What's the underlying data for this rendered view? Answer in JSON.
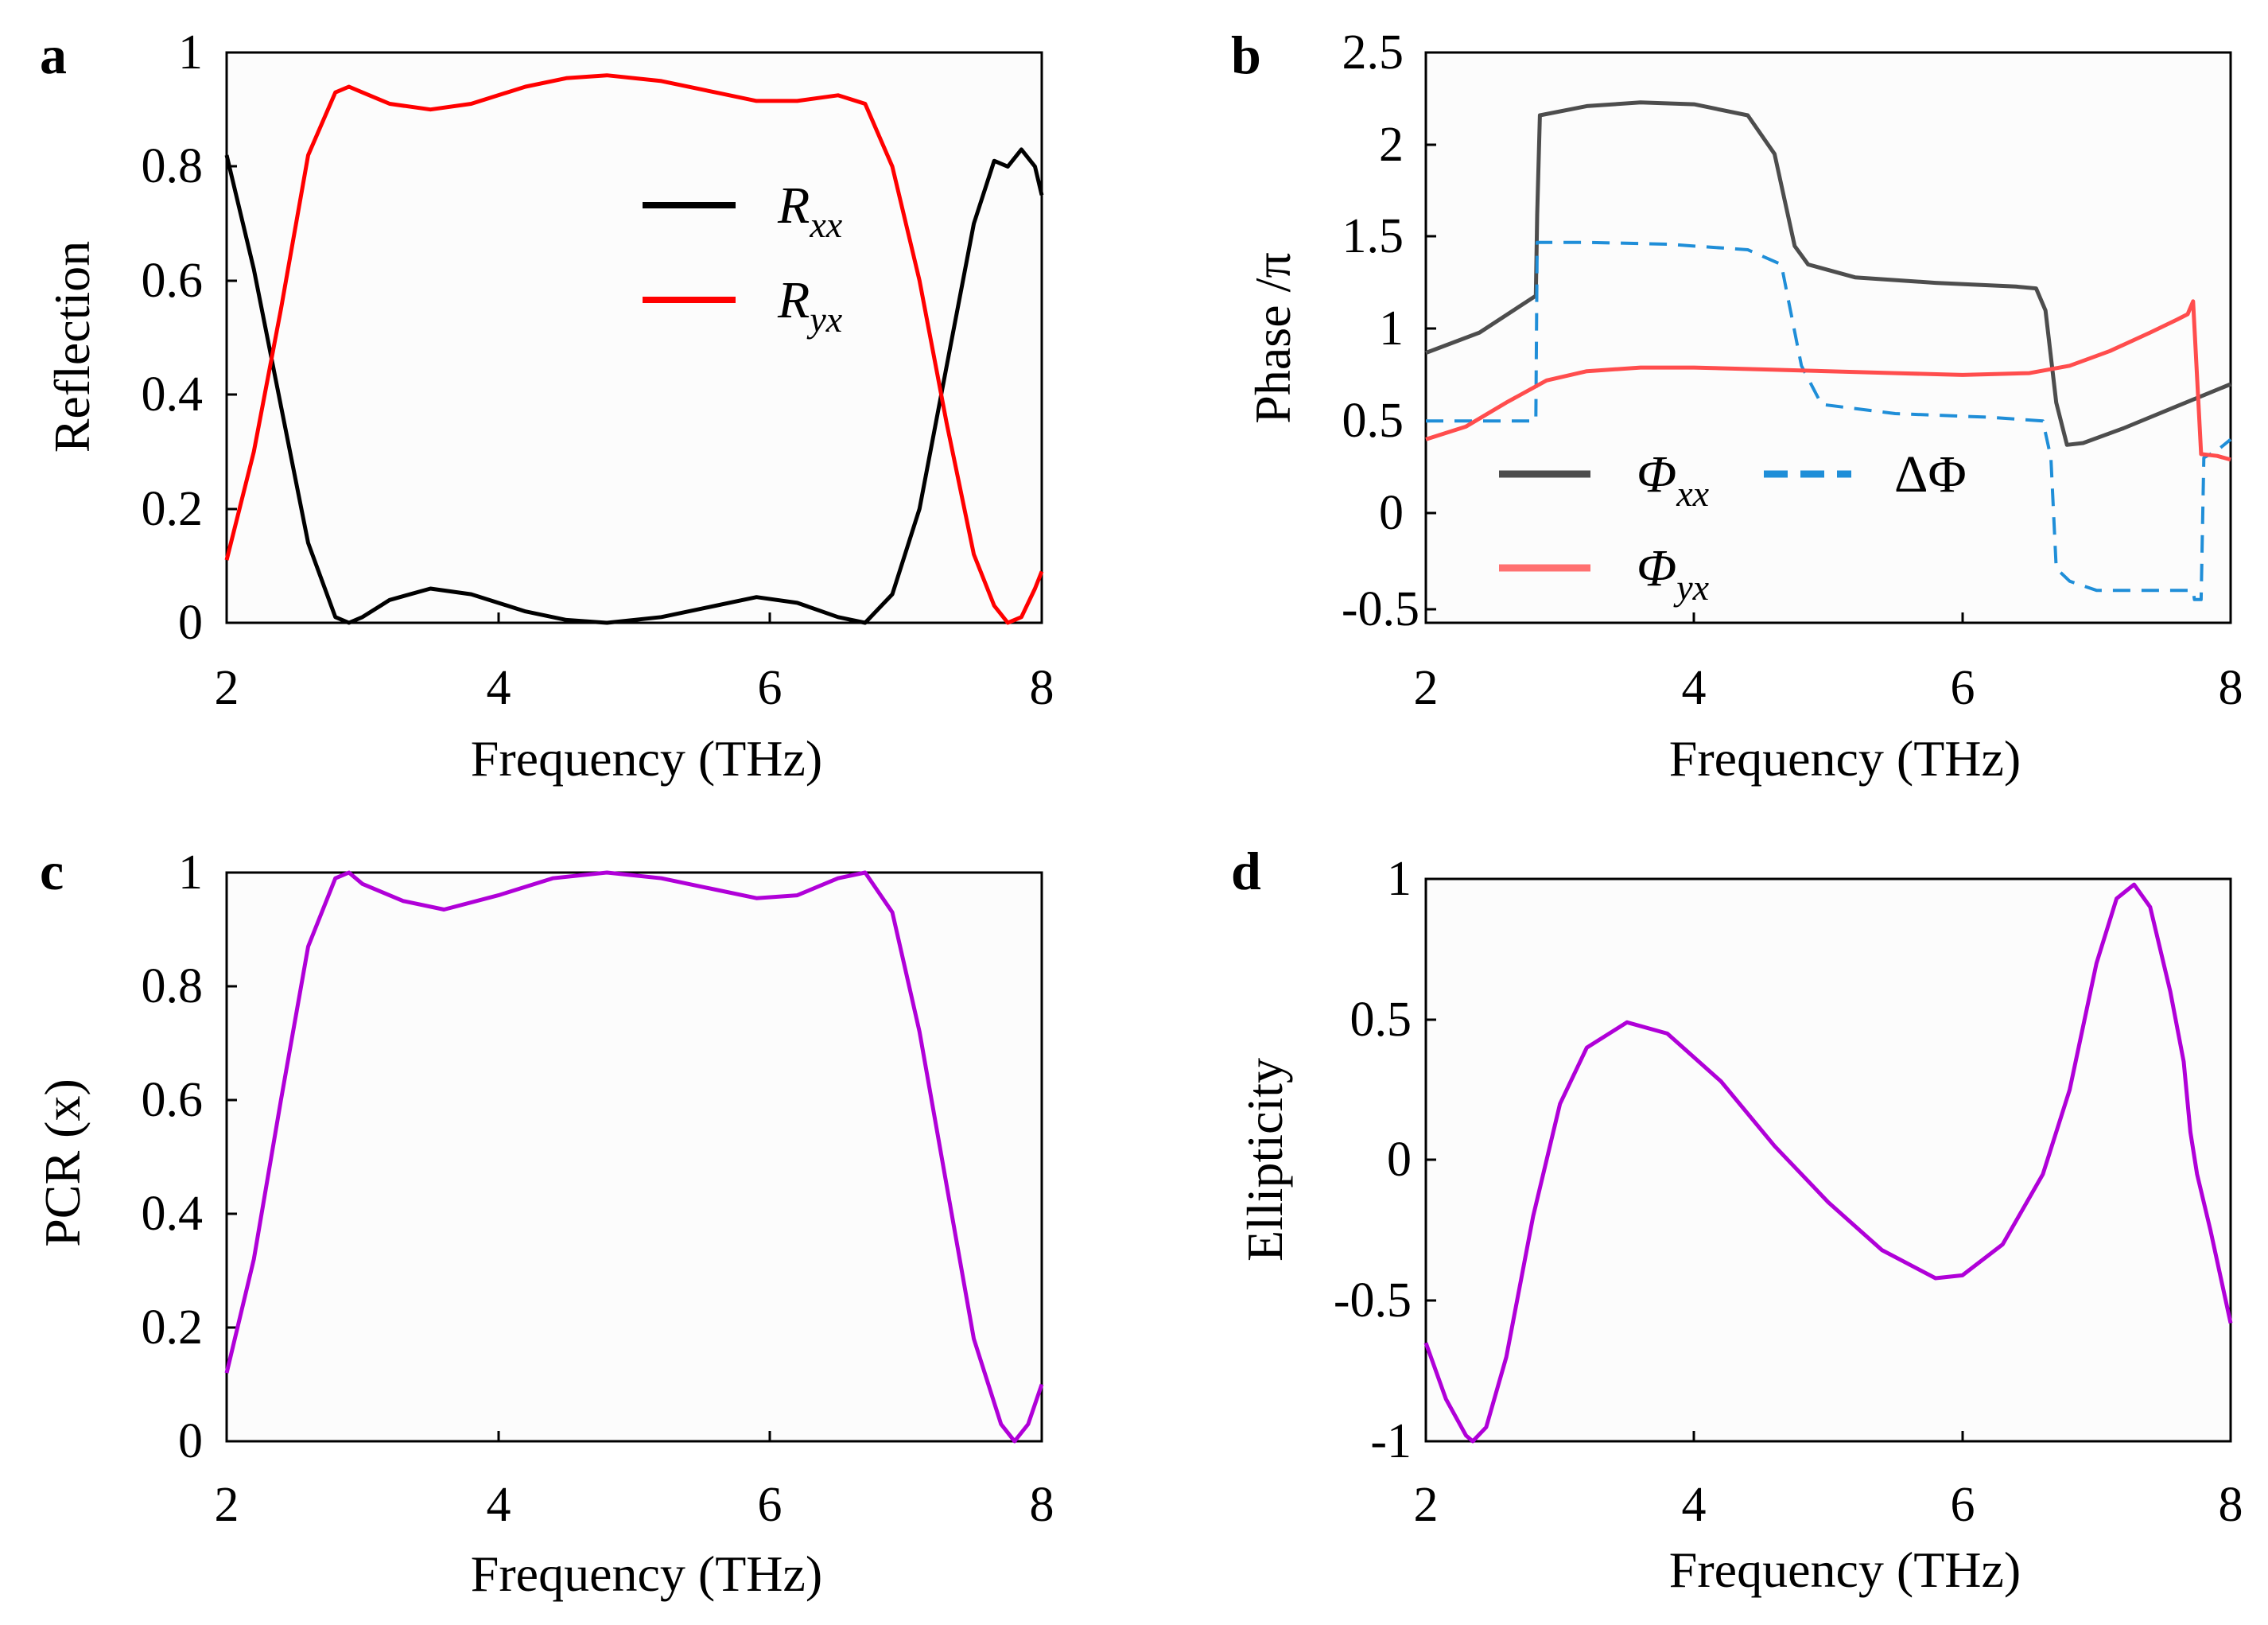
{
  "panels": [
    {
      "letter": "a",
      "xlabel": "Frequency (THz)",
      "ylabel": "Reflection",
      "xticks": [
        "2",
        "4",
        "6",
        "8"
      ],
      "yticks": [
        "0",
        "0.2",
        "0.4",
        "0.6",
        "0.8",
        "1"
      ]
    },
    {
      "letter": "b",
      "xlabel": "Frequency (THz)",
      "ylabel": "Phase /π",
      "xticks": [
        "2",
        "4",
        "6",
        "8"
      ],
      "yticks": [
        "-0.5",
        "0",
        "0.5",
        "1",
        "1.5",
        "2",
        "2.5"
      ]
    },
    {
      "letter": "c",
      "xlabel": "Frequency (THz)",
      "ylabel": "PCR (x)",
      "xticks": [
        "2",
        "4",
        "6",
        "8"
      ],
      "yticks": [
        "0",
        "0.2",
        "0.4",
        "0.6",
        "0.8",
        "1"
      ]
    },
    {
      "letter": "d",
      "xlabel": "Frequency (THz)",
      "ylabel": "Ellipticity",
      "xticks": [
        "2",
        "4",
        "6",
        "8"
      ],
      "yticks": [
        "-1",
        "-0.5",
        "0",
        "0.5",
        "1"
      ]
    }
  ],
  "chart_data": [
    {
      "type": "line",
      "title": "a",
      "xlabel": "Frequency (THz)",
      "ylabel": "Reflection",
      "xlim": [
        2,
        8
      ],
      "ylim": [
        0,
        1
      ],
      "legend_position": "top-right",
      "series": [
        {
          "name": "R_xx",
          "main": "R",
          "sub": "xx",
          "color": "#000000",
          "x": [
            2.0,
            2.2,
            2.4,
            2.6,
            2.8,
            2.9,
            3.0,
            3.2,
            3.5,
            3.8,
            4.2,
            4.5,
            4.8,
            5.2,
            5.6,
            5.9,
            6.2,
            6.5,
            6.7,
            6.9,
            7.1,
            7.3,
            7.5,
            7.65,
            7.75,
            7.85,
            7.95,
            8.0
          ],
          "y": [
            0.82,
            0.62,
            0.38,
            0.14,
            0.01,
            0.0,
            0.01,
            0.04,
            0.06,
            0.05,
            0.02,
            0.005,
            0.0,
            0.01,
            0.03,
            0.045,
            0.035,
            0.01,
            0.0,
            0.05,
            0.2,
            0.45,
            0.7,
            0.81,
            0.8,
            0.83,
            0.8,
            0.75
          ]
        },
        {
          "name": "R_yx",
          "main": "R",
          "sub": "yx",
          "color": "#ff0000",
          "x": [
            2.0,
            2.2,
            2.4,
            2.6,
            2.8,
            2.9,
            3.0,
            3.2,
            3.5,
            3.8,
            4.2,
            4.5,
            4.8,
            5.2,
            5.6,
            5.9,
            6.2,
            6.5,
            6.7,
            6.9,
            7.1,
            7.3,
            7.5,
            7.65,
            7.75,
            7.85,
            7.95,
            8.0
          ],
          "y": [
            0.11,
            0.3,
            0.55,
            0.82,
            0.93,
            0.94,
            0.93,
            0.91,
            0.9,
            0.91,
            0.94,
            0.955,
            0.96,
            0.95,
            0.93,
            0.915,
            0.915,
            0.925,
            0.91,
            0.8,
            0.6,
            0.35,
            0.12,
            0.03,
            0.0,
            0.01,
            0.06,
            0.09
          ]
        }
      ]
    },
    {
      "type": "line",
      "title": "b",
      "xlabel": "Frequency (THz)",
      "ylabel": "Phase /π",
      "xlim": [
        2,
        8
      ],
      "ylim": [
        -0.5,
        2.5
      ],
      "legend_position": "bottom-left",
      "series": [
        {
          "name": "Φ_xx",
          "main": "Φ",
          "sub": "xx",
          "color": "#4d4d4d",
          "dash": "",
          "x": [
            2.0,
            2.4,
            2.82,
            2.83,
            2.85,
            3.2,
            3.6,
            4.0,
            4.4,
            4.6,
            4.75,
            4.85,
            5.2,
            5.8,
            6.4,
            6.55,
            6.62,
            6.7,
            6.78,
            6.9,
            7.2,
            7.6,
            8.0
          ],
          "y": [
            0.87,
            0.98,
            1.18,
            1.62,
            2.16,
            2.21,
            2.23,
            2.22,
            2.16,
            1.95,
            1.45,
            1.35,
            1.28,
            1.25,
            1.23,
            1.22,
            1.1,
            0.6,
            0.37,
            0.38,
            0.46,
            0.58,
            0.7
          ]
        },
        {
          "name": "ΔΦ",
          "main": "ΔΦ",
          "sub": "",
          "color": "#1f8ed8",
          "dash": "22,14",
          "x": [
            2.0,
            2.82,
            2.83,
            3.2,
            3.8,
            4.4,
            4.65,
            4.8,
            4.95,
            5.5,
            6.2,
            6.6,
            6.66,
            6.7,
            6.8,
            7.0,
            7.5,
            7.72,
            7.73,
            7.78,
            7.8,
            7.9,
            8.0
          ],
          "y": [
            0.5,
            0.5,
            1.47,
            1.47,
            1.46,
            1.43,
            1.35,
            0.8,
            0.59,
            0.54,
            0.52,
            0.5,
            0.3,
            -0.3,
            -0.37,
            -0.42,
            -0.42,
            -0.42,
            -0.47,
            -0.47,
            0.3,
            0.34,
            0.4
          ]
        },
        {
          "name": "Φ_yx",
          "main": "Φ",
          "sub": "yx",
          "color": "#ff4d4d",
          "dash": "",
          "x": [
            2.0,
            2.3,
            2.6,
            2.9,
            3.2,
            3.6,
            4.0,
            4.5,
            5.0,
            5.5,
            6.0,
            6.5,
            6.8,
            7.1,
            7.4,
            7.6,
            7.68,
            7.72,
            7.78,
            7.9,
            8.0
          ],
          "y": [
            0.4,
            0.47,
            0.6,
            0.72,
            0.77,
            0.79,
            0.79,
            0.78,
            0.77,
            0.76,
            0.75,
            0.76,
            0.8,
            0.88,
            0.98,
            1.05,
            1.08,
            1.15,
            0.32,
            0.31,
            0.29
          ]
        }
      ]
    },
    {
      "type": "line",
      "title": "c",
      "xlabel": "Frequency (THz)",
      "ylabel": "PCR (x)",
      "xlim": [
        2,
        8
      ],
      "ylim": [
        0,
        1
      ],
      "series": [
        {
          "name": "PCR (x)",
          "color": "#b000d8",
          "x": [
            2.0,
            2.2,
            2.4,
            2.6,
            2.8,
            2.9,
            3.0,
            3.3,
            3.6,
            4.0,
            4.4,
            4.8,
            5.2,
            5.6,
            5.9,
            6.2,
            6.5,
            6.7,
            6.9,
            7.1,
            7.3,
            7.5,
            7.7,
            7.8,
            7.9,
            8.0
          ],
          "y": [
            0.12,
            0.32,
            0.6,
            0.87,
            0.99,
            1.0,
            0.98,
            0.95,
            0.935,
            0.96,
            0.99,
            1.0,
            0.99,
            0.97,
            0.955,
            0.96,
            0.99,
            1.0,
            0.93,
            0.72,
            0.45,
            0.18,
            0.03,
            0.0,
            0.03,
            0.1
          ]
        }
      ]
    },
    {
      "type": "line",
      "title": "d",
      "xlabel": "Frequency (THz)",
      "ylabel": "Ellipticity",
      "xlim": [
        2,
        8
      ],
      "ylim": [
        -1,
        1
      ],
      "series": [
        {
          "name": "Ellipticity",
          "color": "#b000d8",
          "x": [
            2.0,
            2.15,
            2.3,
            2.35,
            2.45,
            2.6,
            2.8,
            3.0,
            3.2,
            3.5,
            3.8,
            4.2,
            4.6,
            5.0,
            5.4,
            5.8,
            6.0,
            6.3,
            6.6,
            6.8,
            7.0,
            7.15,
            7.28,
            7.4,
            7.55,
            7.65,
            7.7,
            7.75,
            7.85,
            8.0
          ],
          "y": [
            -0.65,
            -0.85,
            -0.98,
            -1.0,
            -0.95,
            -0.7,
            -0.2,
            0.2,
            0.4,
            0.49,
            0.45,
            0.28,
            0.05,
            -0.15,
            -0.32,
            -0.42,
            -0.41,
            -0.3,
            -0.05,
            0.25,
            0.7,
            0.93,
            0.98,
            0.9,
            0.6,
            0.35,
            0.1,
            -0.05,
            -0.25,
            -0.58
          ]
        }
      ]
    }
  ]
}
